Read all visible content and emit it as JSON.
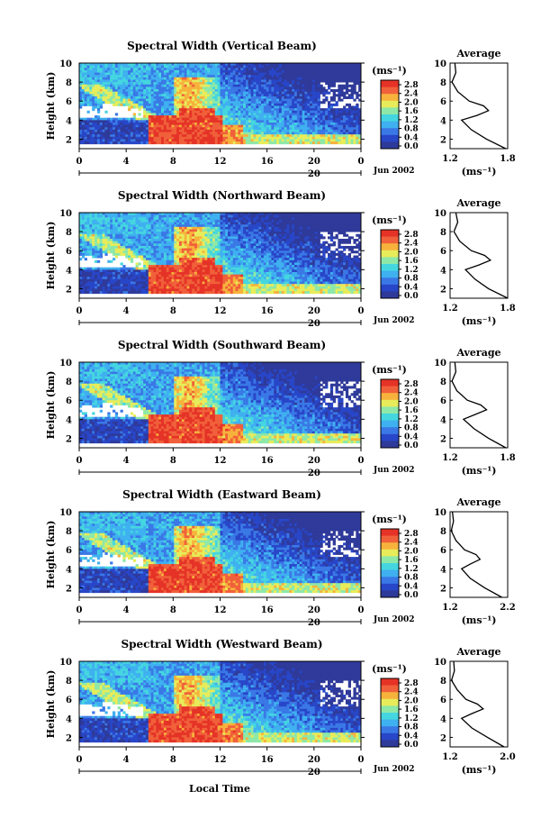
{
  "figure": {
    "common": {
      "ylabel": "Height (km)",
      "xticks": [
        "0",
        "4",
        "8",
        "12",
        "16",
        "20",
        "0"
      ],
      "date_label": "20",
      "month_label": "Jun 2002",
      "unit_label": "(ms⁻¹)",
      "colorbar_ticks": [
        "2.8",
        "2.4",
        "2.0",
        "1.6",
        "1.2",
        "0.8",
        "0.4",
        "0.0"
      ],
      "avg_title": "Average",
      "avg_unit": "(ms⁻¹)",
      "xlabel_bottom": "Local Time"
    },
    "colors": {
      "scale": [
        "#2f3a9a",
        "#2846c8",
        "#3a78e6",
        "#3fb0f0",
        "#45d6e0",
        "#8ee8a8",
        "#e8ec5a",
        "#f7b23c",
        "#f0603a",
        "#e53327"
      ]
    }
  },
  "chart_data": [
    {
      "type": "heatmap",
      "title": "Spectral Width (Vertical Beam)",
      "x_range_hours": [
        0,
        24
      ],
      "y_range_km": [
        1,
        10
      ],
      "yticks": [
        "10",
        "8",
        "6",
        "4",
        "2"
      ],
      "colorbar_range": [
        0.0,
        2.8
      ],
      "avg_profile": {
        "type": "line",
        "title": "Average",
        "xticks": [
          "1.2",
          "1.8"
        ],
        "xlim": [
          1.2,
          1.8
        ],
        "yticks": [
          "10",
          "8",
          "6",
          "4",
          "2"
        ],
        "height_km": [
          1,
          2,
          3,
          4,
          4.5,
          5,
          5.5,
          6,
          7,
          8,
          9,
          10
        ],
        "width": [
          1.78,
          1.58,
          1.42,
          1.32,
          1.48,
          1.6,
          1.55,
          1.4,
          1.28,
          1.22,
          1.26,
          1.25
        ]
      }
    },
    {
      "type": "heatmap",
      "title": "Spectral Width (Northward Beam)",
      "x_range_hours": [
        0,
        24
      ],
      "y_range_km": [
        1,
        10
      ],
      "yticks": [
        "10",
        "8",
        "6",
        "4",
        "2"
      ],
      "colorbar_range": [
        0.0,
        2.8
      ],
      "avg_profile": {
        "type": "line",
        "title": "Average",
        "xticks": [
          "1.2",
          "1.8"
        ],
        "xlim": [
          1.2,
          1.8
        ],
        "yticks": [
          "10",
          "8",
          "6",
          "4",
          "2"
        ],
        "height_km": [
          1,
          2,
          3,
          4,
          4.5,
          5,
          5.5,
          6,
          7,
          8,
          9,
          10
        ],
        "width": [
          1.8,
          1.6,
          1.46,
          1.36,
          1.5,
          1.62,
          1.56,
          1.42,
          1.3,
          1.24,
          1.28,
          1.26
        ]
      }
    },
    {
      "type": "heatmap",
      "title": "Spectral Width (Southward Beam)",
      "x_range_hours": [
        0,
        24
      ],
      "y_range_km": [
        1,
        10
      ],
      "yticks": [
        "10",
        "8",
        "6",
        "4",
        "2"
      ],
      "colorbar_range": [
        0.0,
        2.8
      ],
      "avg_profile": {
        "type": "line",
        "title": "Average",
        "xticks": [
          "1.2",
          "1.8"
        ],
        "xlim": [
          1.2,
          1.8
        ],
        "yticks": [
          "10",
          "8",
          "6",
          "4",
          "2"
        ],
        "height_km": [
          1,
          2,
          3,
          4,
          4.5,
          5,
          5.5,
          6,
          7,
          8,
          9,
          10
        ],
        "width": [
          1.78,
          1.6,
          1.45,
          1.34,
          1.46,
          1.58,
          1.52,
          1.38,
          1.27,
          1.22,
          1.26,
          1.25
        ]
      }
    },
    {
      "type": "heatmap",
      "title": "Spectral Width (Eastward Beam)",
      "x_range_hours": [
        0,
        24
      ],
      "y_range_km": [
        1,
        10
      ],
      "yticks": [
        "10",
        "8",
        "6",
        "4",
        "2"
      ],
      "colorbar_range": [
        0.0,
        2.8
      ],
      "avg_profile": {
        "type": "line",
        "title": "Average",
        "xticks": [
          "1.2",
          "2.2"
        ],
        "xlim": [
          1.2,
          2.2
        ],
        "yticks": [
          "10",
          "8",
          "6",
          "4",
          "2"
        ],
        "height_km": [
          1,
          2,
          3,
          4,
          4.5,
          5,
          5.5,
          6,
          7,
          8,
          9,
          10
        ],
        "width": [
          2.1,
          1.8,
          1.55,
          1.4,
          1.55,
          1.72,
          1.65,
          1.45,
          1.3,
          1.22,
          1.26,
          1.24
        ]
      }
    },
    {
      "type": "heatmap",
      "title": "Spectral Width (Westward Beam)",
      "x_range_hours": [
        0,
        24
      ],
      "y_range_km": [
        1,
        10
      ],
      "yticks": [
        "10",
        "8",
        "6",
        "4",
        "2"
      ],
      "colorbar_range": [
        0.0,
        2.8
      ],
      "avg_profile": {
        "type": "line",
        "title": "Average",
        "xticks": [
          "1.2",
          "2.0"
        ],
        "xlim": [
          1.2,
          2.0
        ],
        "yticks": [
          "10",
          "8",
          "6",
          "4",
          "2"
        ],
        "height_km": [
          1,
          2,
          3,
          4,
          4.5,
          5,
          5.5,
          6,
          7,
          8,
          9,
          10
        ],
        "width": [
          1.95,
          1.72,
          1.5,
          1.36,
          1.5,
          1.66,
          1.58,
          1.42,
          1.3,
          1.22,
          1.26,
          1.25
        ]
      }
    }
  ]
}
